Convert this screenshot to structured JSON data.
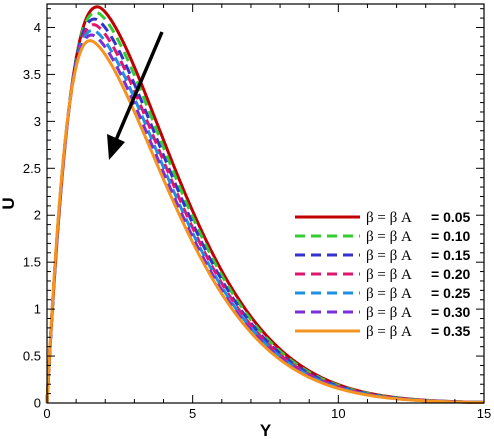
{
  "chart_data": {
    "type": "line",
    "xlabel": "Y",
    "ylabel": "U",
    "xlim": [
      0,
      15
    ],
    "ylim": [
      0,
      4.25
    ],
    "x_ticks": [
      0,
      5,
      10,
      15
    ],
    "x_tick_labels": [
      "0",
      "5",
      "10",
      "15"
    ],
    "y_ticks": [
      0,
      0.5,
      1,
      1.5,
      2,
      2.5,
      3,
      3.5,
      4
    ],
    "y_tick_labels": [
      "0",
      "0.5",
      "1",
      "1.5",
      "2",
      "2.5",
      "3",
      "3.5",
      "4"
    ],
    "grid": false,
    "legend_position": "center-right",
    "legend_prefix": "β = β A",
    "annotation": "arrow indicating decreasing peak as β A increases",
    "series": [
      {
        "name": "0.05",
        "color": "#c00000",
        "dash": "solid",
        "peak_x": 1.75,
        "peak_y": 4.22
      },
      {
        "name": "0.10",
        "color": "#33cc33",
        "dash": "dashed",
        "peak_x": 1.7,
        "peak_y": 4.16
      },
      {
        "name": "0.15",
        "color": "#3333cc",
        "dash": "dashed",
        "peak_x": 1.65,
        "peak_y": 4.09
      },
      {
        "name": "0.20",
        "color": "#e0156f",
        "dash": "dashed",
        "peak_x": 1.62,
        "peak_y": 4.03
      },
      {
        "name": "0.25",
        "color": "#1e90e0",
        "dash": "dashed",
        "peak_x": 1.58,
        "peak_y": 3.97
      },
      {
        "name": "0.30",
        "color": "#7b2fd6",
        "dash": "dashed",
        "peak_x": 1.55,
        "peak_y": 3.92
      },
      {
        "name": "0.35",
        "color": "#f59320",
        "dash": "solid",
        "peak_x": 1.5,
        "peak_y": 3.86
      }
    ],
    "x_values": [
      0,
      0.1,
      0.2,
      0.3,
      0.5,
      0.7,
      1,
      1.3,
      1.5,
      1.75,
      2,
      2.5,
      3,
      3.5,
      4,
      5,
      6,
      7,
      8,
      9,
      10,
      11,
      12,
      13,
      14,
      15
    ]
  },
  "colors": {
    "frame": "#000000",
    "arrow": "#000000",
    "background": "#ffffff"
  }
}
